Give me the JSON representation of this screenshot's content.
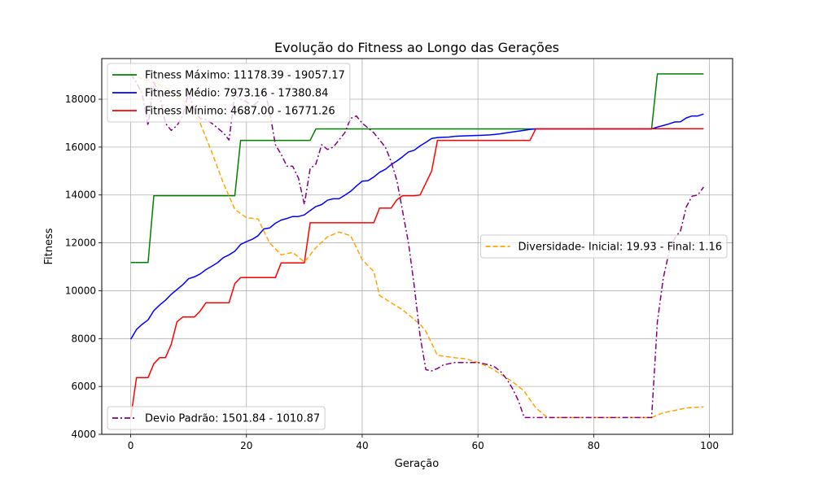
{
  "chart_data": {
    "type": "line",
    "title": "Evolução do Fitness ao Longo das Gerações",
    "xlabel": "Geração",
    "ylabel": "Fitness",
    "xlim": [
      -5,
      104
    ],
    "ylim": [
      4000,
      19700
    ],
    "xticks": [
      0,
      20,
      40,
      60,
      80,
      100
    ],
    "yticks": [
      4000,
      6000,
      8000,
      10000,
      12000,
      14000,
      16000,
      18000
    ],
    "grid": true,
    "series": [
      {
        "name": "Fitness Máximo: 11178.39 - 19057.17",
        "color": "#008000",
        "style": "solid",
        "legend": "upper-left",
        "points": [
          [
            0,
            11178
          ],
          [
            3,
            11178
          ],
          [
            4,
            13970
          ],
          [
            18,
            13970
          ],
          [
            19,
            16280
          ],
          [
            31,
            16280
          ],
          [
            32,
            16760
          ],
          [
            90,
            16760
          ],
          [
            91,
            19057
          ],
          [
            99,
            19057
          ]
        ]
      },
      {
        "name": "Fitness Médio: 7973.16 - 17380.84",
        "color": "#0000ff",
        "style": "solid",
        "legend": "upper-left",
        "points": [
          [
            0,
            7973
          ],
          [
            1,
            8380
          ],
          [
            2,
            8600
          ],
          [
            3,
            8780
          ],
          [
            4,
            9170
          ],
          [
            5,
            9400
          ],
          [
            6,
            9600
          ],
          [
            7,
            9850
          ],
          [
            8,
            10050
          ],
          [
            9,
            10250
          ],
          [
            10,
            10500
          ],
          [
            11,
            10580
          ],
          [
            12,
            10700
          ],
          [
            13,
            10880
          ],
          [
            14,
            11020
          ],
          [
            15,
            11170
          ],
          [
            16,
            11380
          ],
          [
            17,
            11500
          ],
          [
            18,
            11650
          ],
          [
            19,
            11930
          ],
          [
            20,
            12050
          ],
          [
            21,
            12150
          ],
          [
            22,
            12300
          ],
          [
            23,
            12580
          ],
          [
            24,
            12620
          ],
          [
            25,
            12820
          ],
          [
            26,
            12950
          ],
          [
            27,
            13020
          ],
          [
            28,
            13100
          ],
          [
            29,
            13100
          ],
          [
            30,
            13170
          ],
          [
            31,
            13350
          ],
          [
            32,
            13520
          ],
          [
            33,
            13600
          ],
          [
            34,
            13780
          ],
          [
            35,
            13840
          ],
          [
            36,
            13840
          ],
          [
            37,
            13990
          ],
          [
            38,
            14150
          ],
          [
            39,
            14370
          ],
          [
            40,
            14580
          ],
          [
            41,
            14600
          ],
          [
            42,
            14750
          ],
          [
            43,
            14950
          ],
          [
            44,
            15070
          ],
          [
            45,
            15270
          ],
          [
            46,
            15420
          ],
          [
            47,
            15600
          ],
          [
            48,
            15800
          ],
          [
            49,
            15870
          ],
          [
            50,
            16050
          ],
          [
            51,
            16200
          ],
          [
            52,
            16360
          ],
          [
            53,
            16400
          ],
          [
            54,
            16410
          ],
          [
            55,
            16420
          ],
          [
            56,
            16450
          ],
          [
            57,
            16460
          ],
          [
            58,
            16470
          ],
          [
            59,
            16480
          ],
          [
            60,
            16490
          ],
          [
            61,
            16500
          ],
          [
            62,
            16510
          ],
          [
            63,
            16530
          ],
          [
            64,
            16560
          ],
          [
            65,
            16600
          ],
          [
            66,
            16630
          ],
          [
            67,
            16670
          ],
          [
            68,
            16700
          ],
          [
            69,
            16740
          ],
          [
            70,
            16760
          ],
          [
            90,
            16760
          ],
          [
            91,
            16840
          ],
          [
            92,
            16900
          ],
          [
            93,
            16970
          ],
          [
            94,
            17050
          ],
          [
            95,
            17060
          ],
          [
            96,
            17220
          ],
          [
            97,
            17300
          ],
          [
            98,
            17300
          ],
          [
            99,
            17381
          ]
        ]
      },
      {
        "name": "Fitness Mínimo: 4687.00 - 16771.26",
        "color": "#ff0000",
        "style": "solid",
        "legend": "upper-left",
        "points": [
          [
            0,
            4687
          ],
          [
            1,
            6370
          ],
          [
            3,
            6370
          ],
          [
            4,
            6950
          ],
          [
            5,
            7200
          ],
          [
            6,
            7200
          ],
          [
            7,
            7750
          ],
          [
            8,
            8700
          ],
          [
            9,
            8900
          ],
          [
            11,
            8900
          ],
          [
            12,
            9150
          ],
          [
            13,
            9500
          ],
          [
            17,
            9500
          ],
          [
            18,
            10300
          ],
          [
            19,
            10550
          ],
          [
            25,
            10550
          ],
          [
            26,
            11160
          ],
          [
            30,
            11160
          ],
          [
            31,
            12840
          ],
          [
            42,
            12840
          ],
          [
            43,
            13450
          ],
          [
            45,
            13450
          ],
          [
            46,
            13800
          ],
          [
            47,
            13970
          ],
          [
            49,
            13970
          ],
          [
            50,
            14000
          ],
          [
            52,
            15000
          ],
          [
            53,
            16280
          ],
          [
            69,
            16280
          ],
          [
            70,
            16771
          ],
          [
            99,
            16771
          ]
        ]
      },
      {
        "name": "Diversidade- Inicial: 19.93 - Final: 1.16",
        "color": "#ffa500",
        "style": "dashed",
        "legend": "center-right",
        "points": [
          [
            0,
            19050
          ],
          [
            2,
            18850
          ],
          [
            4,
            18700
          ],
          [
            6,
            18500
          ],
          [
            8,
            18100
          ],
          [
            10,
            17800
          ],
          [
            12,
            17000
          ],
          [
            14,
            15800
          ],
          [
            16,
            14500
          ],
          [
            18,
            13400
          ],
          [
            20,
            13050
          ],
          [
            22,
            13000
          ],
          [
            24,
            12000
          ],
          [
            26,
            11500
          ],
          [
            28,
            11600
          ],
          [
            30,
            11200
          ],
          [
            32,
            11800
          ],
          [
            34,
            12250
          ],
          [
            36,
            12450
          ],
          [
            38,
            12300
          ],
          [
            40,
            11300
          ],
          [
            42,
            10800
          ],
          [
            43,
            9800
          ],
          [
            45,
            9500
          ],
          [
            47,
            9200
          ],
          [
            49,
            8800
          ],
          [
            50,
            8600
          ],
          [
            51,
            8300
          ],
          [
            52,
            7800
          ],
          [
            53,
            7300
          ],
          [
            56,
            7200
          ],
          [
            58,
            7150
          ],
          [
            60,
            7000
          ],
          [
            62,
            6800
          ],
          [
            64,
            6500
          ],
          [
            66,
            6200
          ],
          [
            68,
            5800
          ],
          [
            70,
            5100
          ],
          [
            72,
            4700
          ],
          [
            90,
            4700
          ],
          [
            92,
            4900
          ],
          [
            94,
            5000
          ],
          [
            96,
            5100
          ],
          [
            99,
            5150
          ]
        ]
      },
      {
        "name": "Devio Padrão: 1501.84 - 1010.87",
        "color": "#800080",
        "style": "dashdot",
        "legend": "lower-left",
        "points": [
          [
            0,
            19050
          ],
          [
            1,
            18700
          ],
          [
            2,
            18200
          ],
          [
            3,
            16900
          ],
          [
            4,
            18700
          ],
          [
            5,
            18200
          ],
          [
            6,
            17000
          ],
          [
            7,
            16700
          ],
          [
            8,
            16900
          ],
          [
            9,
            17300
          ],
          [
            10,
            18300
          ],
          [
            11,
            17500
          ],
          [
            12,
            17200
          ],
          [
            13,
            17150
          ],
          [
            14,
            17000
          ],
          [
            15,
            16800
          ],
          [
            16,
            16600
          ],
          [
            17,
            16300
          ],
          [
            18,
            18200
          ],
          [
            19,
            18000
          ],
          [
            20,
            17900
          ],
          [
            21,
            17700
          ],
          [
            22,
            17900
          ],
          [
            23,
            18550
          ],
          [
            24,
            17500
          ],
          [
            25,
            16100
          ],
          [
            26,
            15700
          ],
          [
            27,
            15200
          ],
          [
            28,
            15200
          ],
          [
            29,
            14700
          ],
          [
            30,
            13600
          ],
          [
            31,
            15100
          ],
          [
            32,
            15300
          ],
          [
            33,
            16100
          ],
          [
            34,
            15900
          ],
          [
            35,
            16000
          ],
          [
            36,
            16300
          ],
          [
            37,
            16600
          ],
          [
            38,
            17200
          ],
          [
            39,
            17300
          ],
          [
            40,
            17000
          ],
          [
            41,
            16800
          ],
          [
            42,
            16600
          ],
          [
            43,
            16300
          ],
          [
            44,
            16000
          ],
          [
            45,
            15400
          ],
          [
            46,
            14600
          ],
          [
            47,
            13300
          ],
          [
            48,
            12000
          ],
          [
            49,
            10200
          ],
          [
            50,
            8100
          ],
          [
            51,
            6700
          ],
          [
            52,
            6650
          ],
          [
            53,
            6750
          ],
          [
            54,
            6900
          ],
          [
            55,
            6950
          ],
          [
            56,
            7000
          ],
          [
            57,
            7000
          ],
          [
            58,
            7000
          ],
          [
            59,
            7000
          ],
          [
            60,
            7000
          ],
          [
            61,
            6950
          ],
          [
            62,
            6900
          ],
          [
            63,
            6800
          ],
          [
            64,
            6600
          ],
          [
            65,
            6300
          ],
          [
            66,
            5900
          ],
          [
            67,
            5400
          ],
          [
            68,
            4700
          ],
          [
            90,
            4700
          ],
          [
            91,
            8700
          ],
          [
            92,
            10500
          ],
          [
            93,
            11600
          ],
          [
            94,
            12200
          ],
          [
            95,
            12500
          ],
          [
            96,
            13500
          ],
          [
            97,
            13950
          ],
          [
            98,
            14000
          ],
          [
            99,
            14330
          ]
        ]
      }
    ]
  }
}
